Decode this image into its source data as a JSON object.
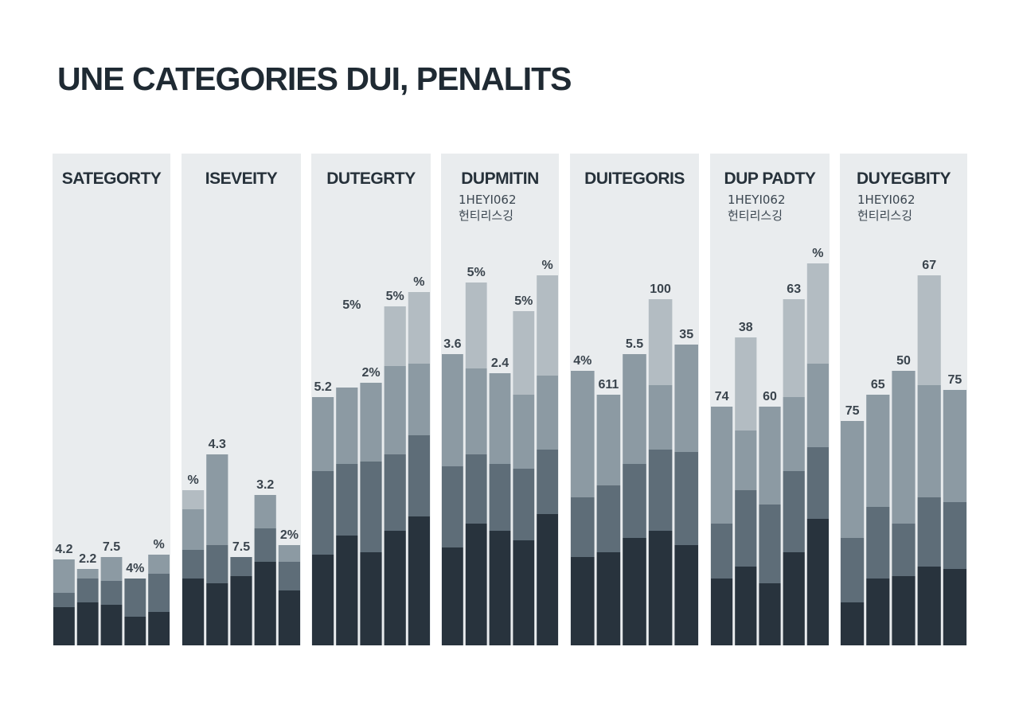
{
  "title": "UNE CATEGORIES DUI, PENALITS",
  "colors": {
    "seg1": "#28333d",
    "seg2": "#5e6d78",
    "seg3": "#8c9aa3",
    "seg4": "#b3bcc2",
    "panel_bg": "#e9ecee"
  },
  "chart_data": [
    {
      "type": "bar",
      "stacked": true,
      "title": "SATEGORTY",
      "subtitle": [],
      "ylim": [
        0,
        100
      ],
      "bars": [
        {
          "label": "4.2",
          "segments": [
            8,
            3,
            7
          ]
        },
        {
          "label": "2.2",
          "segments": [
            9,
            5,
            2
          ]
        },
        {
          "label": "7.5",
          "segments": [
            8.5,
            5,
            5
          ]
        },
        {
          "label": "4%",
          "segments": [
            6,
            8,
            0
          ]
        },
        {
          "label": "%",
          "segments": [
            7,
            8,
            4
          ]
        }
      ]
    },
    {
      "type": "bar",
      "stacked": true,
      "title": "ISEVEITY",
      "subtitle": [],
      "ylim": [
        0,
        100
      ],
      "bars": [
        {
          "label": "%",
          "segments": [
            14,
            6,
            8.5,
            4
          ]
        },
        {
          "label": "4.3",
          "segments": [
            13,
            8,
            19
          ]
        },
        {
          "label": "7.5",
          "segments": [
            14.5,
            4
          ]
        },
        {
          "label": "3.2",
          "segments": [
            17.5,
            7,
            7
          ]
        },
        {
          "label": "2%",
          "segments": [
            11.5,
            6,
            3.5
          ]
        }
      ]
    },
    {
      "type": "bar",
      "stacked": true,
      "title": "DUTEGRTY",
      "subtitle": [],
      "ylim": [
        0,
        100
      ],
      "bars": [
        {
          "label": "5.2",
          "segments": [
            19,
            17.5,
            15.5
          ]
        },
        {
          "label": "",
          "segments": [
            23,
            15,
            16
          ]
        },
        {
          "label": "2%",
          "segments": [
            19.5,
            19,
            16.5
          ]
        },
        {
          "label": "5%",
          "segments": [
            24,
            16,
            18.5,
            12.5
          ]
        },
        {
          "label": "%",
          "segments": [
            27,
            17,
            15,
            15
          ]
        }
      ],
      "floating_labels": [
        {
          "text": "5%",
          "x": 1.2,
          "y": 70.5
        }
      ]
    },
    {
      "type": "bar",
      "stacked": true,
      "title": "DUPMITIN",
      "subtitle": [
        "1HEYI062",
        "헌티리스깅"
      ],
      "ylim": [
        0,
        100
      ],
      "bars": [
        {
          "label": "3.6",
          "segments": [
            20.5,
            17,
            23.5
          ]
        },
        {
          "label": "5%",
          "segments": [
            25.5,
            14.5,
            18,
            18
          ]
        },
        {
          "label": "2.4",
          "segments": [
            24,
            14,
            19
          ]
        },
        {
          "label": "5%",
          "segments": [
            22,
            15,
            15.5,
            17.5
          ]
        },
        {
          "label": "%",
          "segments": [
            27.5,
            13.5,
            15.5,
            21
          ]
        }
      ]
    },
    {
      "type": "bar",
      "stacked": true,
      "title": "DUITEGORIS",
      "subtitle": [],
      "ylim": [
        0,
        100
      ],
      "bars": [
        {
          "label": "4%",
          "segments": [
            18.5,
            12.5,
            26.5
          ]
        },
        {
          "label": "611",
          "segments": [
            19.5,
            14,
            19
          ]
        },
        {
          "label": "5.5",
          "segments": [
            22.5,
            15.5,
            23
          ]
        },
        {
          "label": "100",
          "segments": [
            24,
            17,
            13.5,
            18
          ]
        },
        {
          "label": "35",
          "segments": [
            21,
            19.5,
            22.5
          ]
        }
      ]
    },
    {
      "type": "bar",
      "stacked": true,
      "title": "DUP PADTY",
      "subtitle": [
        "1HEYI062",
        "헌티리스깅"
      ],
      "ylim": [
        0,
        100
      ],
      "bars": [
        {
          "label": "74",
          "segments": [
            14,
            11.5,
            24.5
          ]
        },
        {
          "label": "38",
          "segments": [
            16.5,
            16,
            12.5,
            19.5
          ]
        },
        {
          "label": "60",
          "segments": [
            13,
            16.5,
            20.5
          ]
        },
        {
          "label": "63",
          "segments": [
            19.5,
            17,
            15.5,
            20.5
          ]
        },
        {
          "label": "%",
          "segments": [
            26.5,
            15,
            17.5,
            21
          ]
        }
      ]
    },
    {
      "type": "bar",
      "stacked": true,
      "title": "DUYEGBITY",
      "subtitle": [
        "1HEYI062",
        "헌티리스깅"
      ],
      "ylim": [
        0,
        100
      ],
      "bars": [
        {
          "label": "75",
          "segments": [
            9,
            13.5,
            24.5
          ]
        },
        {
          "label": "65",
          "segments": [
            14,
            15,
            23.5
          ]
        },
        {
          "label": "50",
          "segments": [
            14.5,
            11,
            32
          ]
        },
        {
          "label": "67",
          "segments": [
            16.5,
            14.5,
            23.5,
            23
          ]
        },
        {
          "label": "75",
          "segments": [
            16,
            14,
            23.5
          ]
        }
      ]
    }
  ]
}
